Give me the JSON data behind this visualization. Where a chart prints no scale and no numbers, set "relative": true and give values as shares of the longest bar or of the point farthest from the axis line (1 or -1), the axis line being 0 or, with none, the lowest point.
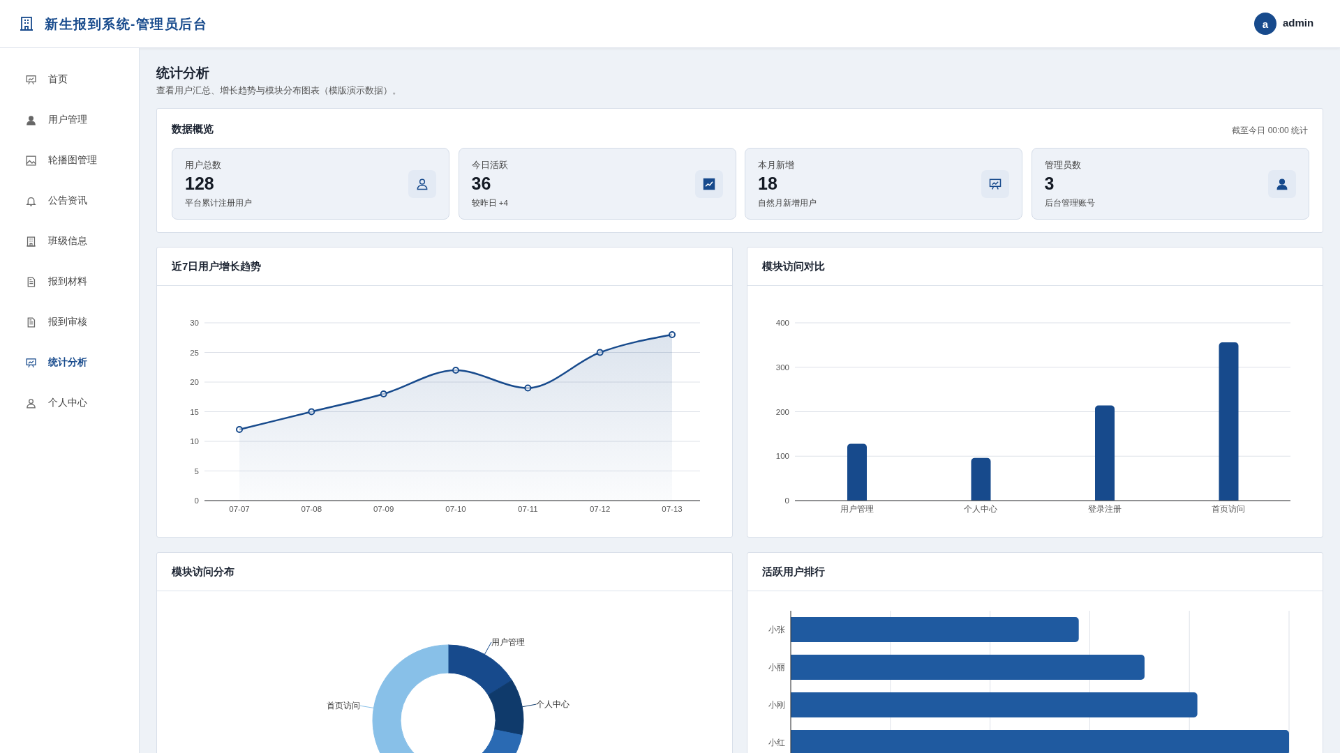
{
  "chart_data": [
    {
      "type": "other",
      "title": "新生报到系统-管理员后台",
      "annotations": [
        "a",
        "admin",
        "首页",
        "用户管理",
        "轮播图管理",
        "公告资讯",
        "班级信息",
        "报到材料",
        "报到审核",
        "统计分析",
        "个人中心"
      ]
    },
    {
      "type": "other",
      "title": "统计分析",
      "subtitle": "查看用户汇总、增长趋势与模块分布图表（模版演示数据）。",
      "annotations": [
        "数据概览",
        "截至今日 00:00 统计",
        "用户总数",
        "128",
        "平台累计注册用户",
        "今日活跃",
        "36",
        "较昨日 +4",
        "本月新增",
        "18",
        "自然月新增用户",
        "管理员数",
        "3",
        "后台管理账号"
      ]
    },
    {
      "type": "area",
      "title": "近7日用户增长趋势",
      "categories": [
        "07-07",
        "07-08",
        "07-09",
        "07-10",
        "07-11",
        "07-12",
        "07-13"
      ],
      "series": [
        {
          "color": "#174a8c",
          "values": [
            12,
            15,
            18,
            22,
            19,
            25,
            28
          ]
        }
      ],
      "ylim": [
        0,
        30
      ],
      "yticks": [
        0,
        5,
        10,
        15,
        20,
        25,
        30
      ],
      "grid": "y",
      "marker": "circle"
    },
    {
      "type": "bar",
      "title": "模块访问对比",
      "categories": [
        "用户管理",
        "个人中心",
        "登录注册",
        "首页访问"
      ],
      "series": [
        {
          "color": "#174a8c",
          "values": [
            128,
            96,
            214,
            356
          ]
        }
      ],
      "ylim": [
        0,
        400
      ],
      "yticks": [
        0,
        100,
        200,
        300,
        400
      ],
      "grid": "y"
    },
    {
      "type": "donut",
      "title": "模块访问分布",
      "categories": [
        "用户管理",
        "个人中心",
        null,
        "首页访问"
      ],
      "values": [
        16.1,
        12.1,
        27,
        44.8
      ],
      "colors": [
        "#174a8c",
        "#0f3a6b",
        "#2a6ab3",
        "#88c0e8"
      ]
    },
    {
      "type": "bar",
      "title": "活跃用户排行",
      "orientation": "horizontal",
      "relative": true,
      "categories": [
        "小张",
        "小丽",
        "小刚",
        "小红"
      ],
      "series": [
        {
          "color": "#1f5aa0",
          "values": [
            0.578,
            0.71,
            0.816,
            1
          ]
        }
      ],
      "grid": "x"
    }
  ]
}
